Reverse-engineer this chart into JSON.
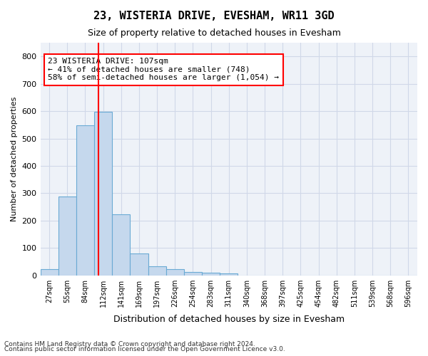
{
  "title1": "23, WISTERIA DRIVE, EVESHAM, WR11 3GD",
  "title2": "Size of property relative to detached houses in Evesham",
  "xlabel": "Distribution of detached houses by size in Evesham",
  "ylabel": "Number of detached properties",
  "bin_labels": [
    "27sqm",
    "55sqm",
    "84sqm",
    "112sqm",
    "141sqm",
    "169sqm",
    "197sqm",
    "226sqm",
    "254sqm",
    "283sqm",
    "311sqm",
    "340sqm",
    "368sqm",
    "397sqm",
    "425sqm",
    "454sqm",
    "482sqm",
    "511sqm",
    "539sqm",
    "568sqm",
    "596sqm"
  ],
  "bar_values": [
    22,
    287,
    548,
    597,
    224,
    80,
    33,
    23,
    13,
    10,
    7,
    0,
    0,
    0,
    0,
    0,
    0,
    0,
    0,
    0,
    0
  ],
  "bar_color": "#c5d8ed",
  "bar_edge_color": "#6aaad4",
  "red_line_x": 2.72,
  "annotation_box_text": "23 WISTERIA DRIVE: 107sqm\n← 41% of detached houses are smaller (748)\n58% of semi-detached houses are larger (1,054) →",
  "ylim": [
    0,
    850
  ],
  "yticks": [
    0,
    100,
    200,
    300,
    400,
    500,
    600,
    700,
    800
  ],
  "grid_color": "#d0d8e8",
  "background_color": "#eef2f8",
  "footer1": "Contains HM Land Registry data © Crown copyright and database right 2024.",
  "footer2": "Contains public sector information licensed under the Open Government Licence v3.0."
}
